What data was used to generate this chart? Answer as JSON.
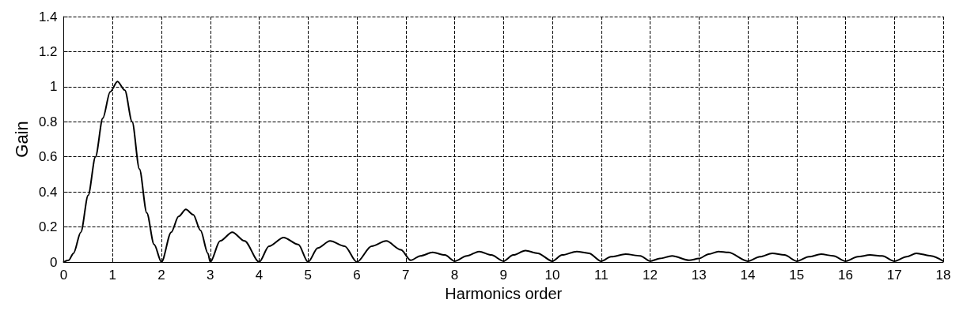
{
  "chart_data": {
    "type": "line",
    "xlabel": "Harmonics order",
    "ylabel": "Gain",
    "x": [
      0,
      0.1,
      0.2,
      0.35,
      0.5,
      0.65,
      0.8,
      0.95,
      1.1,
      1.25,
      1.4,
      1.55,
      1.7,
      1.85,
      2,
      2.2,
      2.35,
      2.5,
      2.65,
      2.8,
      2.95,
      3,
      3.2,
      3.45,
      3.7,
      4,
      4.2,
      4.5,
      4.8,
      5,
      5.2,
      5.45,
      5.75,
      6,
      6.3,
      6.6,
      6.9,
      7.1,
      7.3,
      7.55,
      7.8,
      8,
      8.25,
      8.5,
      8.75,
      9,
      9.2,
      9.45,
      9.7,
      10,
      10.2,
      10.5,
      10.75,
      11,
      11.2,
      11.5,
      11.8,
      12,
      12.2,
      12.45,
      12.8,
      13,
      13.2,
      13.4,
      13.6,
      14,
      14.25,
      14.5,
      14.75,
      15,
      15.25,
      15.5,
      15.75,
      16,
      16.25,
      16.5,
      16.75,
      17,
      17.25,
      17.45,
      17.75,
      18
    ],
    "series": [
      {
        "color": "#000000",
        "values": [
          0,
          0.01,
          0.05,
          0.17,
          0.38,
          0.6,
          0.82,
          0.97,
          1.03,
          0.98,
          0.8,
          0.53,
          0.28,
          0.1,
          0,
          0.17,
          0.26,
          0.3,
          0.27,
          0.18,
          0.05,
          0,
          0.12,
          0.17,
          0.12,
          0,
          0.09,
          0.14,
          0.1,
          0,
          0.08,
          0.12,
          0.09,
          0,
          0.09,
          0.12,
          0.07,
          0.01,
          0.035,
          0.055,
          0.04,
          0.005,
          0.035,
          0.06,
          0.04,
          0.005,
          0.04,
          0.065,
          0.05,
          0.005,
          0.04,
          0.06,
          0.05,
          0.005,
          0.03,
          0.045,
          0.035,
          0.005,
          0.02,
          0.035,
          0.01,
          0.02,
          0.045,
          0.06,
          0.055,
          0.005,
          0.03,
          0.05,
          0.04,
          0.005,
          0.03,
          0.045,
          0.035,
          0.005,
          0.03,
          0.04,
          0.035,
          0.005,
          0.03,
          0.05,
          0.035,
          0.005
        ]
      }
    ],
    "xlim": [
      0,
      18
    ],
    "xticks": [
      0,
      1,
      2,
      3,
      4,
      5,
      6,
      7,
      8,
      9,
      10,
      11,
      12,
      13,
      14,
      15,
      16,
      17,
      18
    ],
    "ylim": [
      0,
      1.4
    ],
    "yticks": [
      0,
      0.2,
      0.4,
      0.6,
      0.8,
      1,
      1.2,
      1.4
    ],
    "grid": true,
    "marker": "none",
    "line_style": "solid"
  }
}
